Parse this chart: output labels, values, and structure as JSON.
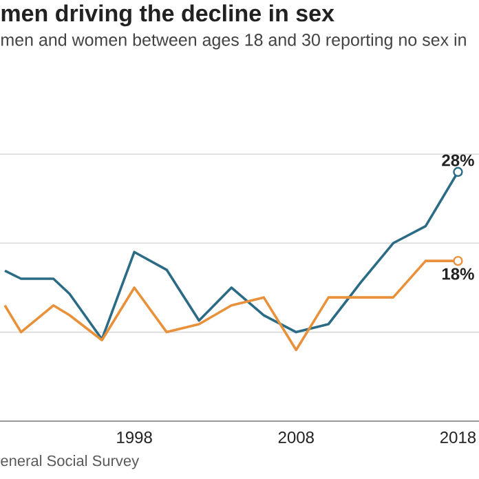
{
  "chart_data": {
    "type": "line",
    "title": "men driving the decline in sex",
    "subtitle": "men and women between ages 18 and 30 reporting no sex in",
    "annotations": [
      "eneral Social Survey"
    ],
    "x": [
      1990,
      1991,
      1993,
      1994,
      1996,
      1998,
      2000,
      2002,
      2004,
      2006,
      2008,
      2010,
      2012,
      2014,
      2016,
      2018
    ],
    "series": [
      {
        "color": "#2b6b86",
        "values": [
          16.9,
          16.0,
          16.0,
          14.3,
          9.2,
          19.0,
          17.0,
          11.3,
          15.0,
          11.9,
          10.0,
          10.9,
          15.6,
          20.0,
          21.9,
          28
        ],
        "value_labels": [
          null,
          null,
          null,
          null,
          null,
          null,
          null,
          null,
          null,
          null,
          null,
          null,
          null,
          null,
          null,
          "28%"
        ]
      },
      {
        "color": "#e8913a",
        "values": [
          13.0,
          10.0,
          13.0,
          11.9,
          9.1,
          15.0,
          10.0,
          10.9,
          13.0,
          13.9,
          8.0,
          13.9,
          13.9,
          13.9,
          18,
          18
        ],
        "value_labels": [
          null,
          null,
          null,
          null,
          null,
          null,
          null,
          null,
          null,
          null,
          null,
          null,
          null,
          null,
          null,
          "18%"
        ]
      }
    ],
    "xlim": [
      1989.7,
      2019.3
    ],
    "xticks": [
      1998,
      2008,
      2018
    ],
    "ylim": [
      0,
      30
    ],
    "yticks": [
      {
        "value": 0,
        "label": null
      },
      {
        "value": 10,
        "label": null
      },
      {
        "value": 20,
        "label": null
      },
      {
        "value": 30,
        "label": null
      }
    ],
    "tick_labels": "x",
    "grid": "y",
    "marker": "none",
    "line_style": "solid"
  }
}
